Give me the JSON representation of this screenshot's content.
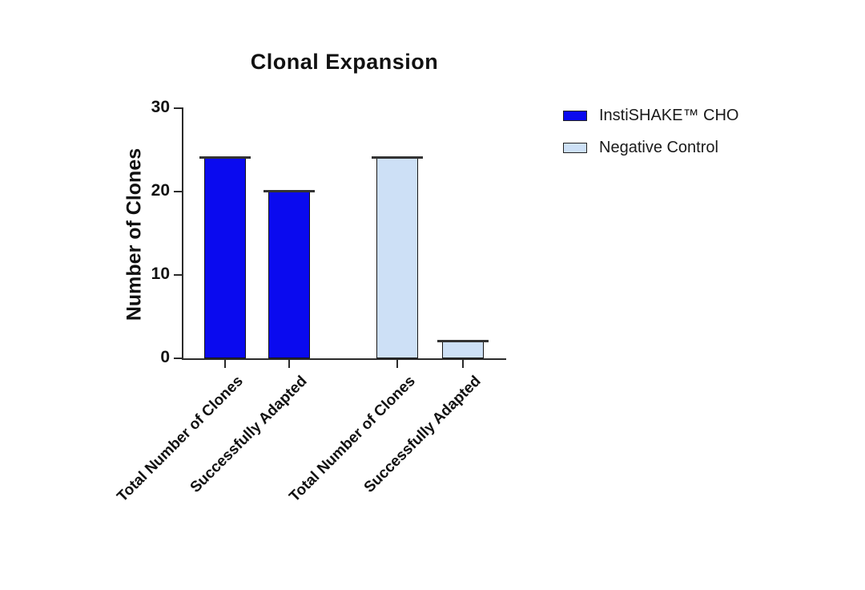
{
  "chart_data": {
    "type": "bar",
    "title": "Clonal Expansion",
    "xlabel": "",
    "ylabel": "Number of Clones",
    "ylim": [
      0,
      30
    ],
    "yticks": [
      0,
      10,
      20,
      30
    ],
    "categories": [
      "Total Number of Clones",
      "Successfully Adapted",
      "Total Number of Clones",
      "Successfully Adapted"
    ],
    "bars": [
      {
        "category": "Total Number of Clones",
        "series": "InstiSHAKE™ CHO",
        "value": 24
      },
      {
        "category": "Successfully Adapted",
        "series": "InstiSHAKE™ CHO",
        "value": 20
      },
      {
        "category": "Total Number of Clones",
        "series": "Negative Control",
        "value": 24
      },
      {
        "category": "Successfully Adapted",
        "series": "Negative Control",
        "value": 2
      }
    ],
    "series": [
      {
        "name": "InstiSHAKE™ CHO",
        "color": "#0a0aef",
        "values": [
          24,
          20
        ]
      },
      {
        "name": "Negative Control",
        "color": "#cde0f6",
        "values": [
          24,
          2
        ]
      }
    ],
    "legend": [
      {
        "label": "InstiSHAKE™ CHO",
        "color": "#0a0aef"
      },
      {
        "label": "Negative Control",
        "color": "#cde0f6"
      }
    ],
    "legend_position": "right",
    "grid": false,
    "error_caps": true,
    "axis_color": "#2b2b2b",
    "text_color": "#111111",
    "background_color": "#ffffff"
  }
}
